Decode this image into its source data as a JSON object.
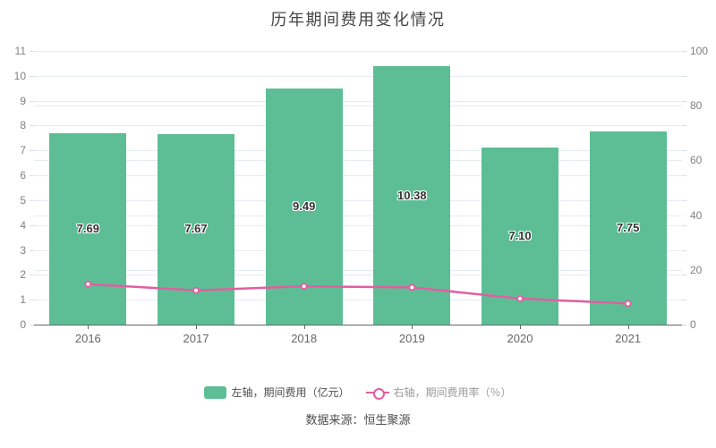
{
  "title": "历年期间费用变化情况",
  "source": "数据来源：恒生聚源",
  "legend": [
    {
      "label": "左轴，期间费用（亿元）",
      "series_type": "bar"
    },
    {
      "label": "右轴，期间费用率（％）",
      "series_type": "line"
    }
  ],
  "colors": {
    "bar": "#5DBE95",
    "line": "#E05FA0",
    "marker_fill": "#ffffff",
    "grid": "#E7EBF4",
    "axis_line": "#666666",
    "axis_tick": "#D8DEE8",
    "axis_label": "#808080",
    "x_label": "#666666",
    "bar_label": "#333333",
    "title_text": "#464646",
    "legend_text_primary": "#4D4D4D",
    "legend_text_secondary": "#9B9B9B",
    "source_text": "#4D4D4D"
  },
  "chart_data": {
    "type": "bar+line combo",
    "title": "历年期间费用变化情况",
    "categories": [
      "2016",
      "2017",
      "2018",
      "2019",
      "2020",
      "2021"
    ],
    "series": [
      {
        "name": "左轴，期间费用（亿元）",
        "type": "bar",
        "axis": "left",
        "values": [
          7.69,
          7.67,
          9.49,
          10.38,
          7.1,
          7.75
        ],
        "labels": [
          "7.69",
          "7.67",
          "9.49",
          "10.38",
          "7.10",
          "7.75"
        ]
      },
      {
        "name": "右轴，期间费用率（％）",
        "type": "line",
        "axis": "right",
        "values": [
          14.8,
          12.5,
          14.0,
          13.6,
          9.5,
          7.7
        ]
      }
    ],
    "left_axis": {
      "min": 0,
      "max": 11,
      "interval": 1
    },
    "right_axis": {
      "min": 0,
      "max": 100,
      "interval": 20
    },
    "grid": true,
    "legend_position": "bottom"
  }
}
